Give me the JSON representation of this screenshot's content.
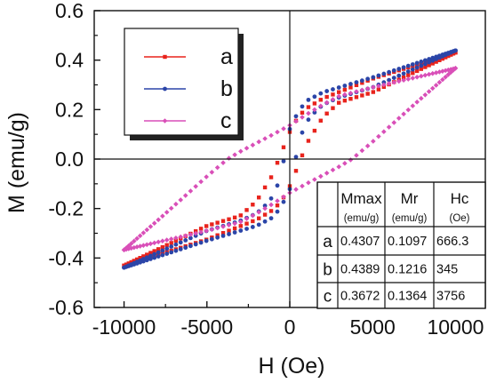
{
  "chart_data": {
    "type": "scatter",
    "title": "",
    "xlabel": "H (Oe)",
    "ylabel": "M (emu/g)",
    "xlim": [
      -11800,
      11800
    ],
    "ylim": [
      -0.6,
      0.6
    ],
    "xticks": [
      -10000,
      -5000,
      0,
      5000,
      10000
    ],
    "xtick_labels": [
      "-10000",
      "-5000",
      "0",
      "5000",
      "10000"
    ],
    "yticks": [
      -0.6,
      -0.4,
      -0.2,
      0.0,
      0.2,
      0.4,
      0.6
    ],
    "ytick_labels": [
      "-0.6",
      "-0.4",
      "-0.2",
      "0.0",
      "0.2",
      "0.4",
      "0.6"
    ],
    "grid": false,
    "reference_lines": [
      "x=0",
      "y=0"
    ],
    "legend_position": "top-left",
    "series": [
      {
        "name": "a",
        "color": "#e8231c",
        "marker": "square",
        "upper_branch": {
          "x": [
            10000,
            5000,
            2000,
            1000,
            500,
            0,
            -300,
            -666.3,
            -1000,
            -2000,
            -3000,
            -5000,
            -10000
          ],
          "y": [
            0.4307,
            0.325,
            0.245,
            0.205,
            0.17,
            0.1097,
            0.06,
            0.0,
            -0.06,
            -0.17,
            -0.23,
            -0.27,
            -0.4307
          ]
        },
        "lower_branch": {
          "x": [
            -10000,
            -5000,
            -2000,
            -1000,
            -500,
            0,
            300,
            666.3,
            1000,
            2000,
            3000,
            5000,
            10000
          ],
          "y": [
            -0.4307,
            -0.325,
            -0.245,
            -0.205,
            -0.17,
            -0.1097,
            -0.06,
            0.0,
            0.06,
            0.17,
            0.23,
            0.27,
            0.4307
          ]
        }
      },
      {
        "name": "b",
        "color": "#2b45a8",
        "marker": "circle",
        "upper_branch": {
          "x": [
            10000,
            5000,
            2000,
            1000,
            500,
            0,
            -345,
            -700,
            -1200,
            -2000,
            -3000,
            -5000,
            -10000
          ],
          "y": [
            0.4389,
            0.33,
            0.27,
            0.235,
            0.19,
            0.1216,
            0.0,
            -0.1,
            -0.17,
            -0.22,
            -0.25,
            -0.29,
            -0.4389
          ]
        },
        "lower_branch": {
          "x": [
            -10000,
            -5000,
            -2000,
            -1000,
            -500,
            0,
            345,
            700,
            1200,
            2000,
            3000,
            5000,
            10000
          ],
          "y": [
            -0.4389,
            -0.33,
            -0.27,
            -0.235,
            -0.19,
            -0.1216,
            0.0,
            0.1,
            0.17,
            0.22,
            0.25,
            0.29,
            0.4389
          ]
        }
      },
      {
        "name": "c",
        "color": "#d94fb8",
        "marker": "diamond",
        "upper_branch": {
          "x": [
            10000,
            5000,
            3000,
            2000,
            1000,
            0,
            -1000,
            -2000,
            -3000,
            -3756,
            -5000,
            -7500,
            -10000
          ],
          "y": [
            0.3672,
            0.29,
            0.255,
            0.22,
            0.18,
            0.1364,
            0.1,
            0.065,
            0.03,
            0.0,
            -0.07,
            -0.22,
            -0.3672
          ]
        },
        "lower_branch": {
          "x": [
            -10000,
            -5000,
            -3000,
            -2000,
            -1000,
            0,
            1000,
            2000,
            3000,
            3756,
            5000,
            7500,
            10000
          ],
          "y": [
            -0.3672,
            -0.29,
            -0.255,
            -0.22,
            -0.18,
            -0.1364,
            -0.1,
            -0.065,
            -0.03,
            0.0,
            0.07,
            0.22,
            0.3672
          ]
        }
      }
    ],
    "table": {
      "columns": [
        {
          "label": "Mmax",
          "unit": "(emu/g)"
        },
        {
          "label": "Mr",
          "unit": "(emu/g)"
        },
        {
          "label": "Hc",
          "unit": "(Oe)"
        }
      ],
      "rows": [
        {
          "label": "a",
          "values": [
            "0.4307",
            "0.1097",
            "666.3"
          ]
        },
        {
          "label": "b",
          "values": [
            "0.4389",
            "0.1216",
            "345"
          ]
        },
        {
          "label": "c",
          "values": [
            "0.3672",
            "0.1364",
            "3756"
          ]
        }
      ]
    }
  }
}
